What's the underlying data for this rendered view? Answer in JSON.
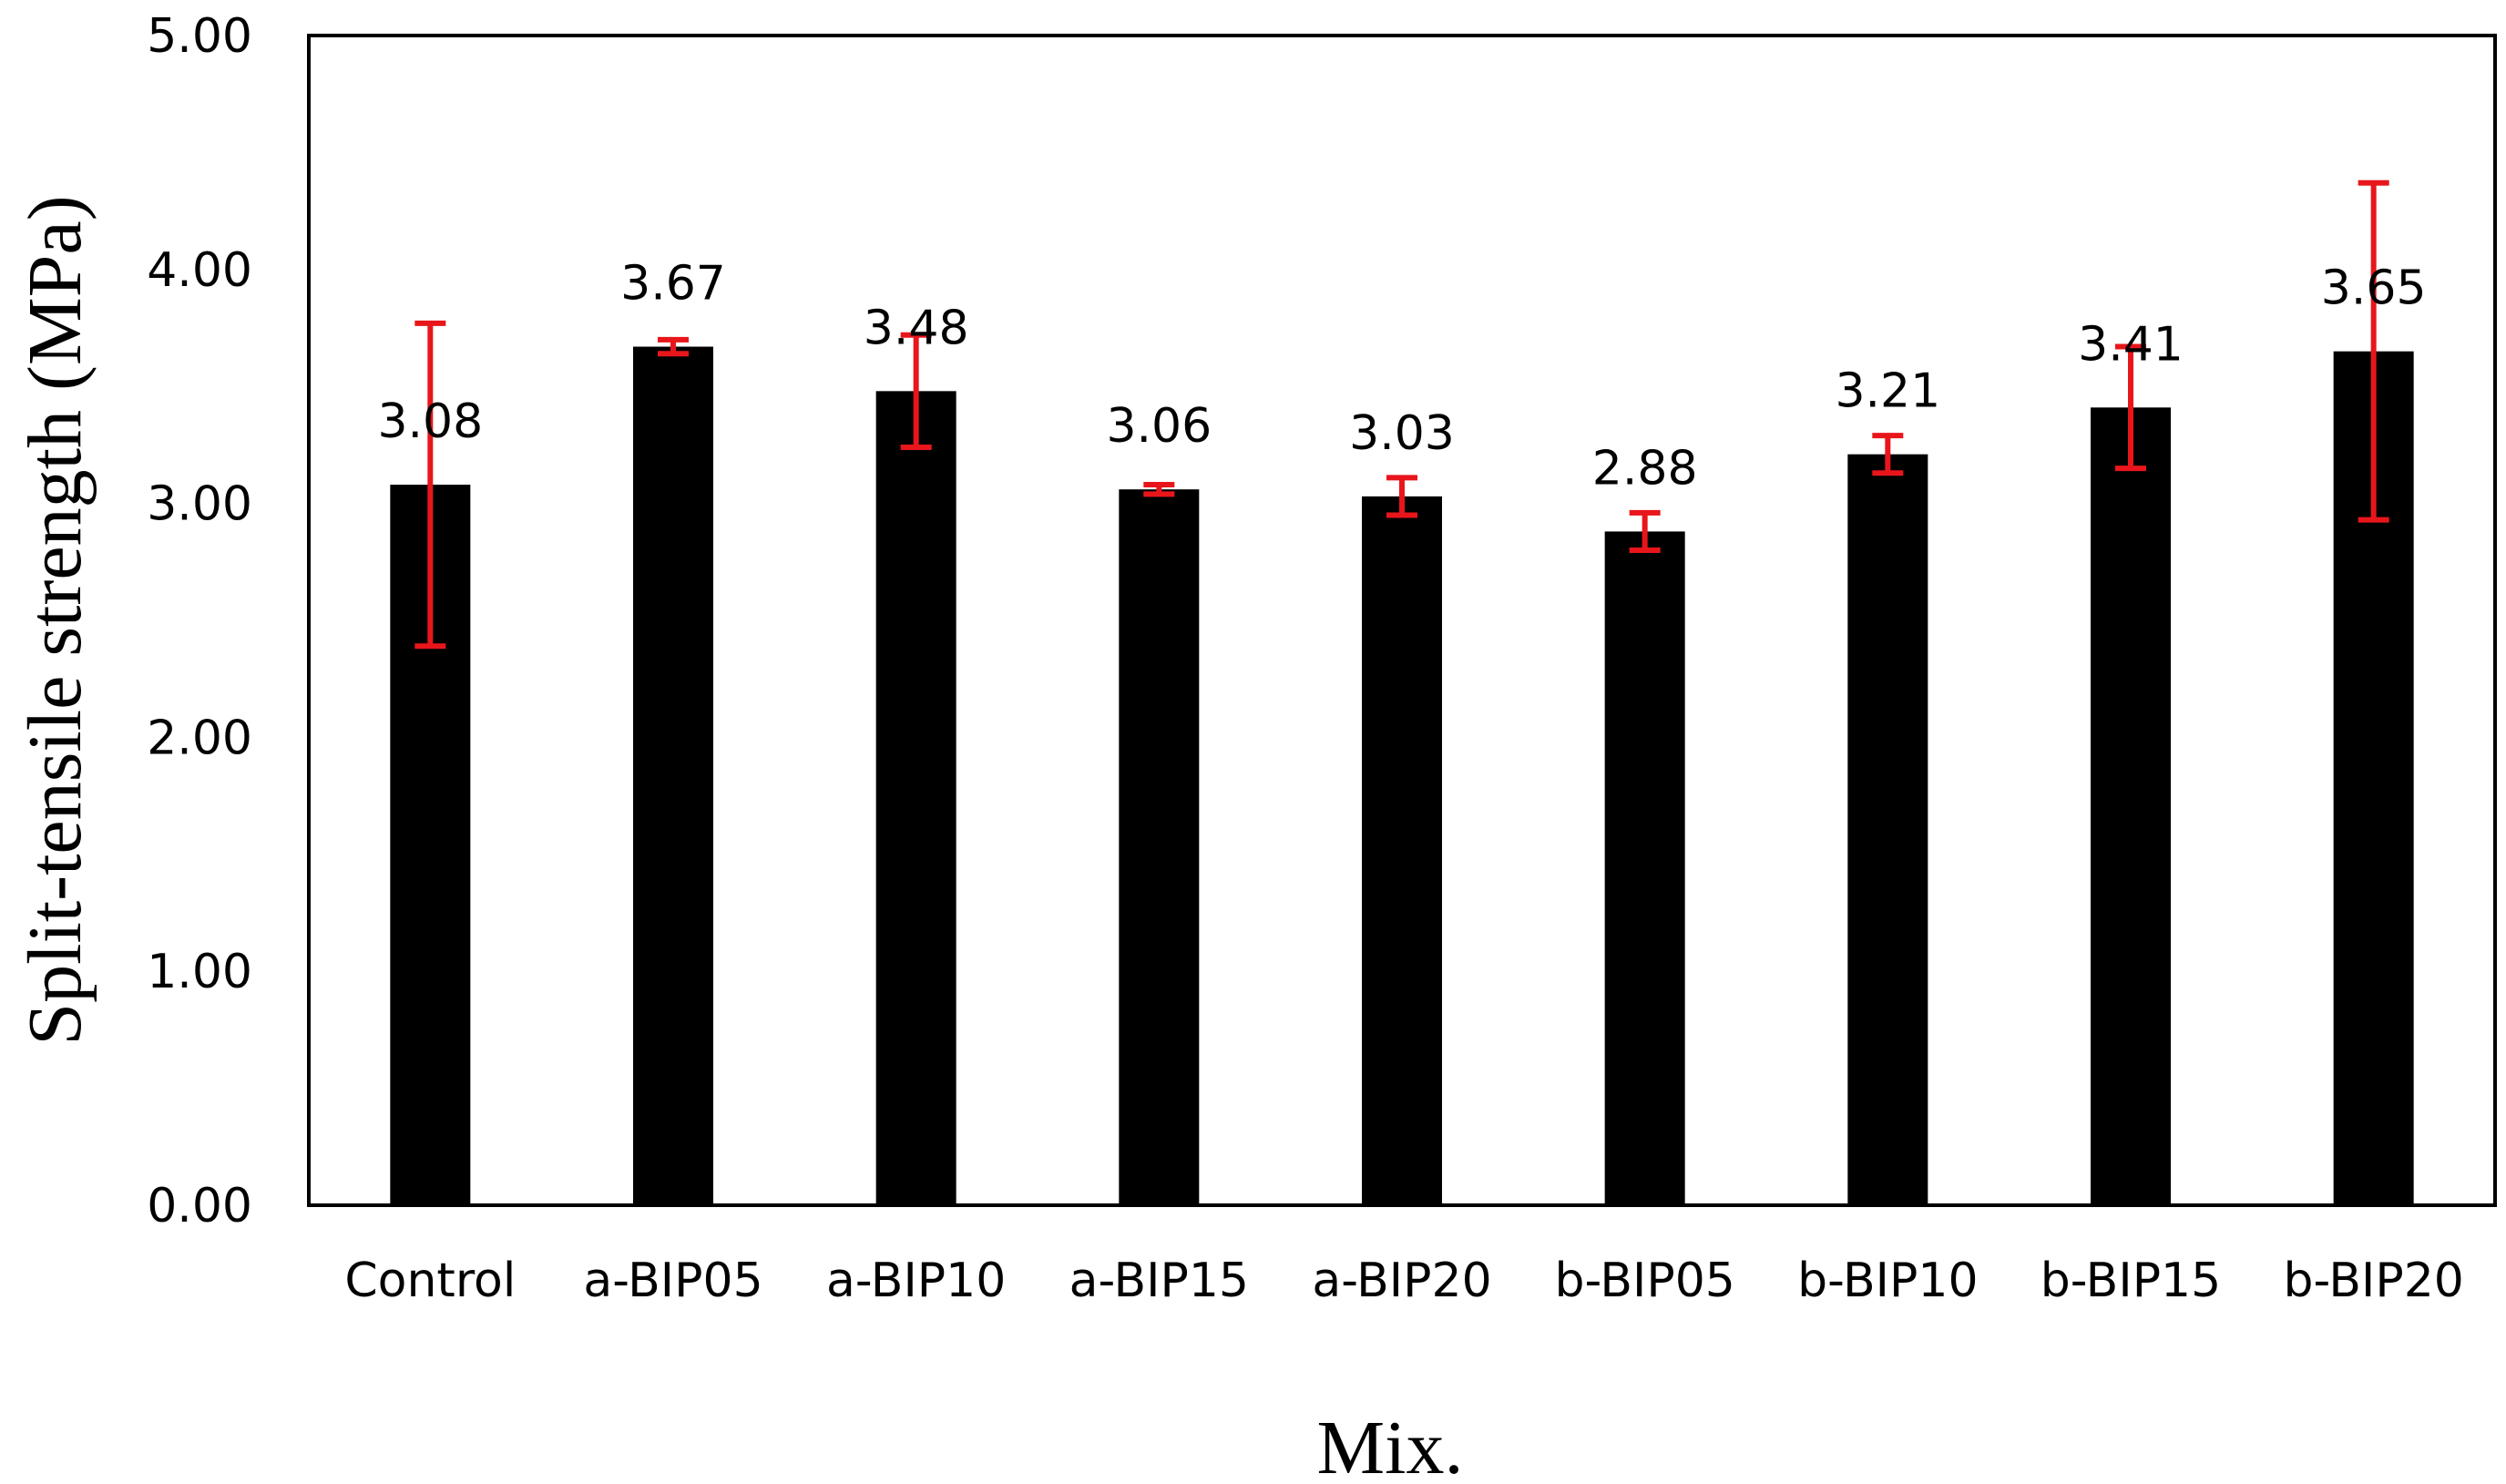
{
  "chart_data": {
    "type": "bar",
    "title": "",
    "xlabel": "Mix.",
    "ylabel": "Split-tensile strength (MPa)",
    "ylim": [
      0,
      5
    ],
    "yticks": [
      "0.00",
      "1.00",
      "2.00",
      "3.00",
      "4.00",
      "5.00"
    ],
    "grid": false,
    "categories": [
      "Control",
      "a-BIP05",
      "a-BIP10",
      "a-BIP15",
      "a-BIP20",
      "b-BIP05",
      "b-BIP10",
      "b-BIP15",
      "b-BIP20"
    ],
    "values": [
      3.08,
      3.67,
      3.48,
      3.06,
      3.03,
      2.88,
      3.21,
      3.41,
      3.65
    ],
    "value_labels": [
      "3.08",
      "3.67",
      "3.48",
      "3.06",
      "3.03",
      "2.88",
      "3.21",
      "3.41",
      "3.65"
    ],
    "error": [
      0.69,
      0.03,
      0.24,
      0.02,
      0.08,
      0.08,
      0.08,
      0.26,
      0.72
    ],
    "bar_color": "#000000",
    "error_color": "#e8161b"
  }
}
